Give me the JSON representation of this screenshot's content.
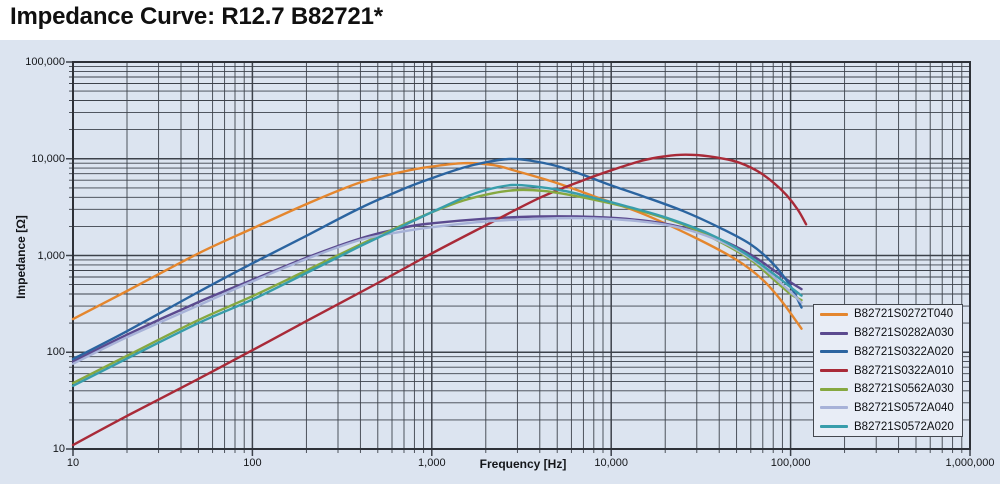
{
  "header": {
    "title": "Impedance Curve: R12.7 B82721*"
  },
  "axes": {
    "x_label": "Frequency [Hz]",
    "y_label": "Impedance [Ω]",
    "x_tick_labels": [
      "10",
      "100",
      "1,000",
      "10,000",
      "100,000",
      "1,000,000"
    ],
    "y_tick_labels": [
      "10",
      "100",
      "1,000",
      "10,000",
      "100,000"
    ]
  },
  "colors": {
    "page_background": "#ffffff",
    "chart_background": "#dce4f0",
    "grid_line": "#3d424b",
    "plot_border": "#2e3138",
    "legend_background": "#e8edf6",
    "legend_border": "#43474e",
    "title_text": "#101010"
  },
  "chart_data": {
    "type": "line",
    "title": "Impedance Curve: R12.7 B82721*",
    "xlabel": "Frequency [Hz]",
    "ylabel": "Impedance [Ω]",
    "x_scale": "log",
    "y_scale": "log",
    "xlim": [
      10,
      1000000
    ],
    "ylim": [
      10,
      100000
    ],
    "grid": "major and minor log gridlines, both axes",
    "legend_position": "inside bottom-right",
    "series": [
      {
        "name": "B82721S0272T040",
        "color": "#e4862e",
        "points": [
          [
            10,
            220
          ],
          [
            20,
            430
          ],
          [
            50,
            1050
          ],
          [
            100,
            1900
          ],
          [
            200,
            3400
          ],
          [
            400,
            5700
          ],
          [
            700,
            7400
          ],
          [
            1000,
            8300
          ],
          [
            1500,
            9000
          ],
          [
            2200,
            8600
          ],
          [
            3000,
            7400
          ],
          [
            5000,
            5600
          ],
          [
            8000,
            4100
          ],
          [
            15000,
            2700
          ],
          [
            30000,
            1500
          ],
          [
            50000,
            900
          ],
          [
            70000,
            560
          ],
          [
            90000,
            330
          ],
          [
            115000,
            175
          ]
        ]
      },
      {
        "name": "B82721S0282A030",
        "color": "#5b4a8f",
        "points": [
          [
            10,
            80
          ],
          [
            20,
            152
          ],
          [
            50,
            330
          ],
          [
            100,
            560
          ],
          [
            200,
            950
          ],
          [
            400,
            1500
          ],
          [
            700,
            1950
          ],
          [
            1000,
            2150
          ],
          [
            2000,
            2400
          ],
          [
            4000,
            2530
          ],
          [
            8000,
            2500
          ],
          [
            15000,
            2300
          ],
          [
            25000,
            1950
          ],
          [
            40000,
            1480
          ],
          [
            60000,
            1020
          ],
          [
            80000,
            710
          ],
          [
            100000,
            530
          ],
          [
            115000,
            450
          ]
        ]
      },
      {
        "name": "B82721S0322A020",
        "color": "#2b64a0",
        "points": [
          [
            10,
            85
          ],
          [
            20,
            165
          ],
          [
            50,
            420
          ],
          [
            100,
            830
          ],
          [
            200,
            1600
          ],
          [
            400,
            3100
          ],
          [
            700,
            4900
          ],
          [
            1000,
            6300
          ],
          [
            1500,
            8100
          ],
          [
            2000,
            9200
          ],
          [
            2700,
            9950
          ],
          [
            3500,
            9600
          ],
          [
            5000,
            8400
          ],
          [
            7000,
            6800
          ],
          [
            10000,
            5300
          ],
          [
            15000,
            4100
          ],
          [
            25000,
            2900
          ],
          [
            40000,
            1950
          ],
          [
            60000,
            1300
          ],
          [
            80000,
            820
          ],
          [
            100000,
            480
          ],
          [
            115000,
            290
          ]
        ]
      },
      {
        "name": "B82721S0322A010",
        "color": "#a92a38",
        "points": [
          [
            10,
            11
          ],
          [
            20,
            22
          ],
          [
            50,
            53
          ],
          [
            100,
            105
          ],
          [
            200,
            210
          ],
          [
            500,
            520
          ],
          [
            1000,
            1050
          ],
          [
            2000,
            2050
          ],
          [
            4000,
            3950
          ],
          [
            7000,
            6000
          ],
          [
            10000,
            7600
          ],
          [
            15000,
            9600
          ],
          [
            20000,
            10600
          ],
          [
            26000,
            11000
          ],
          [
            35000,
            10600
          ],
          [
            50000,
            9300
          ],
          [
            65000,
            7500
          ],
          [
            80000,
            5700
          ],
          [
            95000,
            4200
          ],
          [
            110000,
            2950
          ],
          [
            122000,
            2100
          ]
        ]
      },
      {
        "name": "B82721S0562A030",
        "color": "#86a840",
        "points": [
          [
            10,
            48
          ],
          [
            20,
            92
          ],
          [
            50,
            215
          ],
          [
            100,
            380
          ],
          [
            200,
            700
          ],
          [
            400,
            1300
          ],
          [
            700,
            2100
          ],
          [
            1000,
            2800
          ],
          [
            1500,
            3700
          ],
          [
            2200,
            4400
          ],
          [
            3000,
            4750
          ],
          [
            4200,
            4650
          ],
          [
            6000,
            4200
          ],
          [
            10000,
            3450
          ],
          [
            15000,
            2850
          ],
          [
            25000,
            2100
          ],
          [
            40000,
            1400
          ],
          [
            60000,
            900
          ],
          [
            80000,
            570
          ],
          [
            100000,
            400
          ],
          [
            115000,
            345
          ]
        ]
      },
      {
        "name": "B82721S0572A040",
        "color": "#a7b2d8",
        "points": [
          [
            10,
            76
          ],
          [
            20,
            143
          ],
          [
            50,
            305
          ],
          [
            100,
            540
          ],
          [
            200,
            920
          ],
          [
            400,
            1450
          ],
          [
            700,
            1780
          ],
          [
            1000,
            1960
          ],
          [
            2000,
            2250
          ],
          [
            4000,
            2400
          ],
          [
            7000,
            2430
          ],
          [
            12000,
            2330
          ],
          [
            20000,
            2080
          ],
          [
            30000,
            1730
          ],
          [
            45000,
            1280
          ],
          [
            65000,
            840
          ],
          [
            85000,
            550
          ],
          [
            100000,
            420
          ],
          [
            115000,
            325
          ]
        ]
      },
      {
        "name": "B82721S0572A020",
        "color": "#389dab",
        "points": [
          [
            10,
            45
          ],
          [
            20,
            86
          ],
          [
            50,
            200
          ],
          [
            100,
            350
          ],
          [
            200,
            660
          ],
          [
            400,
            1250
          ],
          [
            700,
            2050
          ],
          [
            1000,
            2800
          ],
          [
            1500,
            3950
          ],
          [
            2000,
            4750
          ],
          [
            2800,
            5350
          ],
          [
            3800,
            5150
          ],
          [
            5500,
            4650
          ],
          [
            8000,
            3950
          ],
          [
            12000,
            3250
          ],
          [
            20000,
            2480
          ],
          [
            35000,
            1680
          ],
          [
            55000,
            1070
          ],
          [
            80000,
            650
          ],
          [
            100000,
            470
          ],
          [
            115000,
            385
          ]
        ]
      }
    ]
  }
}
